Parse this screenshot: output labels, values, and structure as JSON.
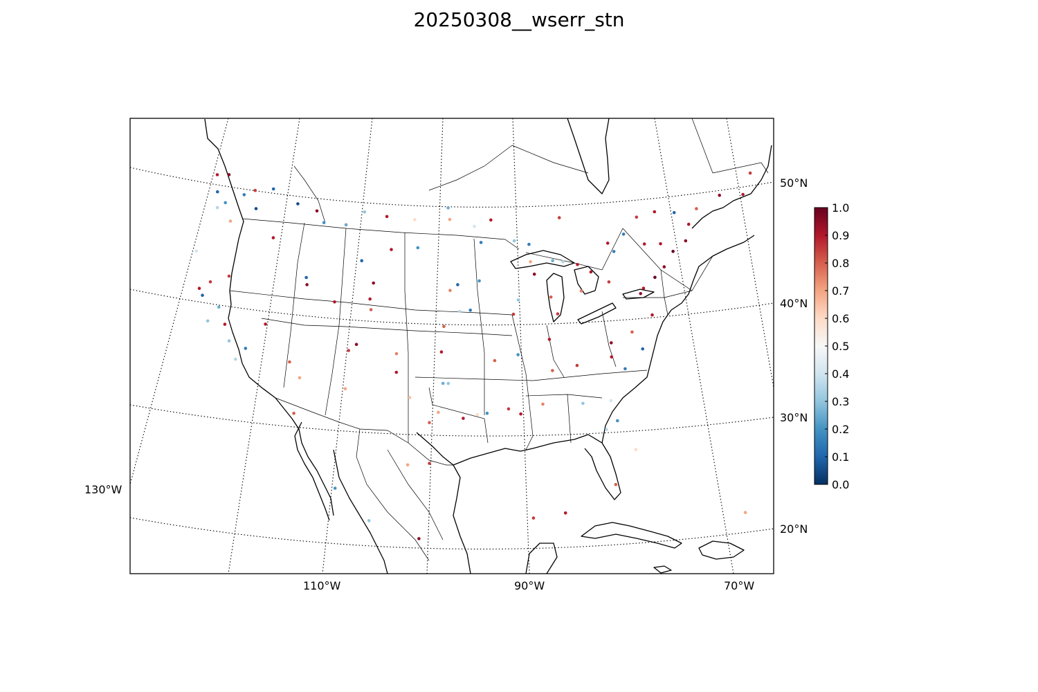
{
  "title": "20250308__wserr_stn",
  "map": {
    "projection": "conic",
    "region": "North America (CONUS focus)",
    "lat_labels": [
      "50°N",
      "40°N",
      "30°N",
      "20°N"
    ],
    "lon_labels": [
      "130°W",
      "110°W",
      "90°W",
      "70°W"
    ],
    "graticule_style": "dotted"
  },
  "colorbar": {
    "colormap": "RdBu_r",
    "range": [
      0.0,
      1.0
    ],
    "ticks": [
      "1.0",
      "0.9",
      "0.8",
      "0.7",
      "0.6",
      "0.5",
      "0.4",
      "0.3",
      "0.2",
      "0.1",
      "0.0"
    ],
    "colors": [
      "#053061",
      "#2166ac",
      "#4393c3",
      "#92c5de",
      "#d1e5f0",
      "#f7f7f7",
      "#fddbc7",
      "#f4a582",
      "#d6604d",
      "#b2182b",
      "#67001f"
    ]
  },
  "chart_data": {
    "type": "scatter",
    "title": "20250308__wserr_stn",
    "value_range": [
      0.0,
      1.0
    ],
    "note_series": "station points (lon, lat, value) colored by value",
    "points": [
      [
        -124.1,
        47.6,
        0.9
      ],
      [
        -123.5,
        46.2,
        0.1
      ],
      [
        -122.8,
        47.9,
        0.95
      ],
      [
        -122.3,
        45.5,
        0.2
      ],
      [
        -121.2,
        44.1,
        0.7
      ],
      [
        -120.5,
        46.6,
        0.15
      ],
      [
        -119.4,
        47.2,
        0.85
      ],
      [
        -117.4,
        47.7,
        0.1
      ],
      [
        -116.2,
        43.6,
        0.9
      ],
      [
        -114.3,
        46.9,
        0.05
      ],
      [
        -112.0,
        46.6,
        0.95
      ],
      [
        -111.0,
        45.7,
        0.2
      ],
      [
        -108.5,
        45.8,
        0.8
      ],
      [
        -106.6,
        47.1,
        0.3
      ],
      [
        -104.0,
        46.9,
        0.9
      ],
      [
        -100.8,
        46.8,
        0.6
      ],
      [
        -97.0,
        47.9,
        0.25
      ],
      [
        -96.8,
        46.9,
        0.7
      ],
      [
        -94.0,
        46.3,
        0.4
      ],
      [
        -93.3,
        44.9,
        0.15
      ],
      [
        -92.1,
        46.8,
        0.9
      ],
      [
        -89.6,
        44.9,
        0.3
      ],
      [
        -88.0,
        43.0,
        0.7
      ],
      [
        -87.7,
        41.9,
        0.95
      ],
      [
        -86.2,
        39.8,
        0.8
      ],
      [
        -84.5,
        42.7,
        0.35
      ],
      [
        -83.0,
        40.0,
        0.75
      ],
      [
        -81.7,
        41.5,
        0.9
      ],
      [
        -80.0,
        40.4,
        0.85
      ],
      [
        -77.0,
        38.9,
        0.95
      ],
      [
        -76.6,
        39.3,
        0.9
      ],
      [
        -75.2,
        40.0,
        1.0
      ],
      [
        -74.0,
        40.7,
        0.95
      ],
      [
        -73.8,
        42.7,
        0.9
      ],
      [
        -72.7,
        41.8,
        1.0
      ],
      [
        -71.1,
        42.4,
        0.95
      ],
      [
        -70.3,
        43.7,
        0.9
      ],
      [
        -69.0,
        44.8,
        0.8
      ],
      [
        -71.5,
        45.0,
        0.1
      ],
      [
        -73.6,
        45.5,
        0.9
      ],
      [
        -75.7,
        45.4,
        0.85
      ],
      [
        -79.4,
        43.7,
        0.9
      ],
      [
        -77.5,
        44.2,
        0.15
      ],
      [
        -66.1,
        45.3,
        0.95
      ],
      [
        -63.6,
        44.7,
        0.9
      ],
      [
        -62.0,
        46.2,
        0.85
      ],
      [
        -122.4,
        37.8,
        0.9
      ],
      [
        -121.9,
        37.3,
        0.1
      ],
      [
        -121.5,
        38.6,
        0.85
      ],
      [
        -120.0,
        36.7,
        0.25
      ],
      [
        -118.2,
        34.1,
        0.3
      ],
      [
        -117.2,
        32.7,
        0.35
      ],
      [
        -119.8,
        39.5,
        0.85
      ],
      [
        -115.1,
        36.2,
        0.9
      ],
      [
        -112.1,
        33.4,
        0.8
      ],
      [
        -110.9,
        32.2,
        0.7
      ],
      [
        -111.9,
        40.8,
        0.1
      ],
      [
        -111.7,
        40.2,
        0.95
      ],
      [
        -108.6,
        39.1,
        0.9
      ],
      [
        -106.6,
        35.1,
        0.85
      ],
      [
        -105.0,
        39.7,
        0.9
      ],
      [
        -104.8,
        38.8,
        0.8
      ],
      [
        -105.9,
        35.7,
        0.95
      ],
      [
        -106.5,
        31.8,
        0.7
      ],
      [
        -101.9,
        35.2,
        0.75
      ],
      [
        -101.8,
        33.6,
        0.9
      ],
      [
        -100.4,
        31.5,
        0.65
      ],
      [
        -97.5,
        35.5,
        0.9
      ],
      [
        -97.3,
        32.8,
        0.25
      ],
      [
        -96.8,
        32.8,
        0.3
      ],
      [
        -97.7,
        30.3,
        0.7
      ],
      [
        -98.5,
        29.4,
        0.8
      ],
      [
        -95.4,
        29.8,
        0.9
      ],
      [
        -94.1,
        30.1,
        0.6
      ],
      [
        -93.2,
        30.2,
        0.2
      ],
      [
        -91.2,
        30.5,
        0.85
      ],
      [
        -90.1,
        30.0,
        0.9
      ],
      [
        -88.0,
        30.7,
        0.75
      ],
      [
        -86.8,
        33.5,
        0.8
      ],
      [
        -84.4,
        33.7,
        0.85
      ],
      [
        -81.0,
        34.0,
        0.9
      ],
      [
        -80.8,
        35.2,
        0.95
      ],
      [
        -78.6,
        35.8,
        0.8
      ],
      [
        -77.9,
        34.2,
        0.1
      ],
      [
        -76.3,
        36.9,
        0.9
      ],
      [
        -79.9,
        32.8,
        0.15
      ],
      [
        -81.7,
        30.3,
        0.4
      ],
      [
        -82.5,
        27.9,
        0.35
      ],
      [
        -81.4,
        28.5,
        0.2
      ],
      [
        -80.2,
        25.8,
        0.6
      ],
      [
        -84.3,
        30.4,
        0.3
      ],
      [
        -85.7,
        38.3,
        0.85
      ],
      [
        -86.8,
        36.2,
        0.9
      ],
      [
        -90.0,
        35.1,
        0.2
      ],
      [
        -92.3,
        34.7,
        0.8
      ],
      [
        -94.6,
        39.1,
        0.15
      ],
      [
        -95.9,
        41.3,
        0.1
      ],
      [
        -96.7,
        40.8,
        0.75
      ],
      [
        -97.3,
        37.7,
        0.8
      ],
      [
        -95.7,
        39.0,
        0.35
      ],
      [
        -93.6,
        41.6,
        0.2
      ],
      [
        -90.2,
        38.6,
        0.85
      ],
      [
        -89.6,
        39.8,
        0.3
      ],
      [
        -100.3,
        44.4,
        0.2
      ],
      [
        -103.2,
        44.1,
        0.9
      ],
      [
        -104.8,
        41.1,
        0.95
      ],
      [
        -106.3,
        42.9,
        0.1
      ],
      [
        -108.5,
        45.8,
        0.25
      ],
      [
        -116.5,
        33.8,
        0.15
      ],
      [
        -119.0,
        35.4,
        0.9
      ],
      [
        -120.7,
        35.3,
        0.3
      ],
      [
        -123.8,
        40.8,
        0.4
      ],
      [
        -123.0,
        44.9,
        0.35
      ],
      [
        -118.8,
        45.7,
        0.05
      ],
      [
        -98.4,
        25.9,
        0.85
      ],
      [
        -100.3,
        25.7,
        0.7
      ],
      [
        -103.3,
        20.7,
        0.3
      ],
      [
        -99.1,
        19.4,
        0.95
      ],
      [
        -106.4,
        23.2,
        0.2
      ],
      [
        -110.9,
        29.1,
        0.8
      ],
      [
        -86.9,
        21.2,
        0.9
      ],
      [
        -89.6,
        21.0,
        0.85
      ],
      [
        -82.4,
        23.1,
        0.8
      ],
      [
        -66.1,
        18.4,
        0.6
      ],
      [
        -72.3,
        18.5,
        0.7
      ],
      [
        -64.8,
        32.3,
        0.3
      ],
      [
        -75.5,
        43.0,
        0.9
      ],
      [
        -78.9,
        42.9,
        0.15
      ],
      [
        -83.0,
        42.3,
        0.9
      ],
      [
        -85.6,
        42.9,
        0.25
      ],
      [
        -88.0,
        44.5,
        0.15
      ],
      [
        -84.3,
        46.5,
        0.85
      ]
    ]
  }
}
